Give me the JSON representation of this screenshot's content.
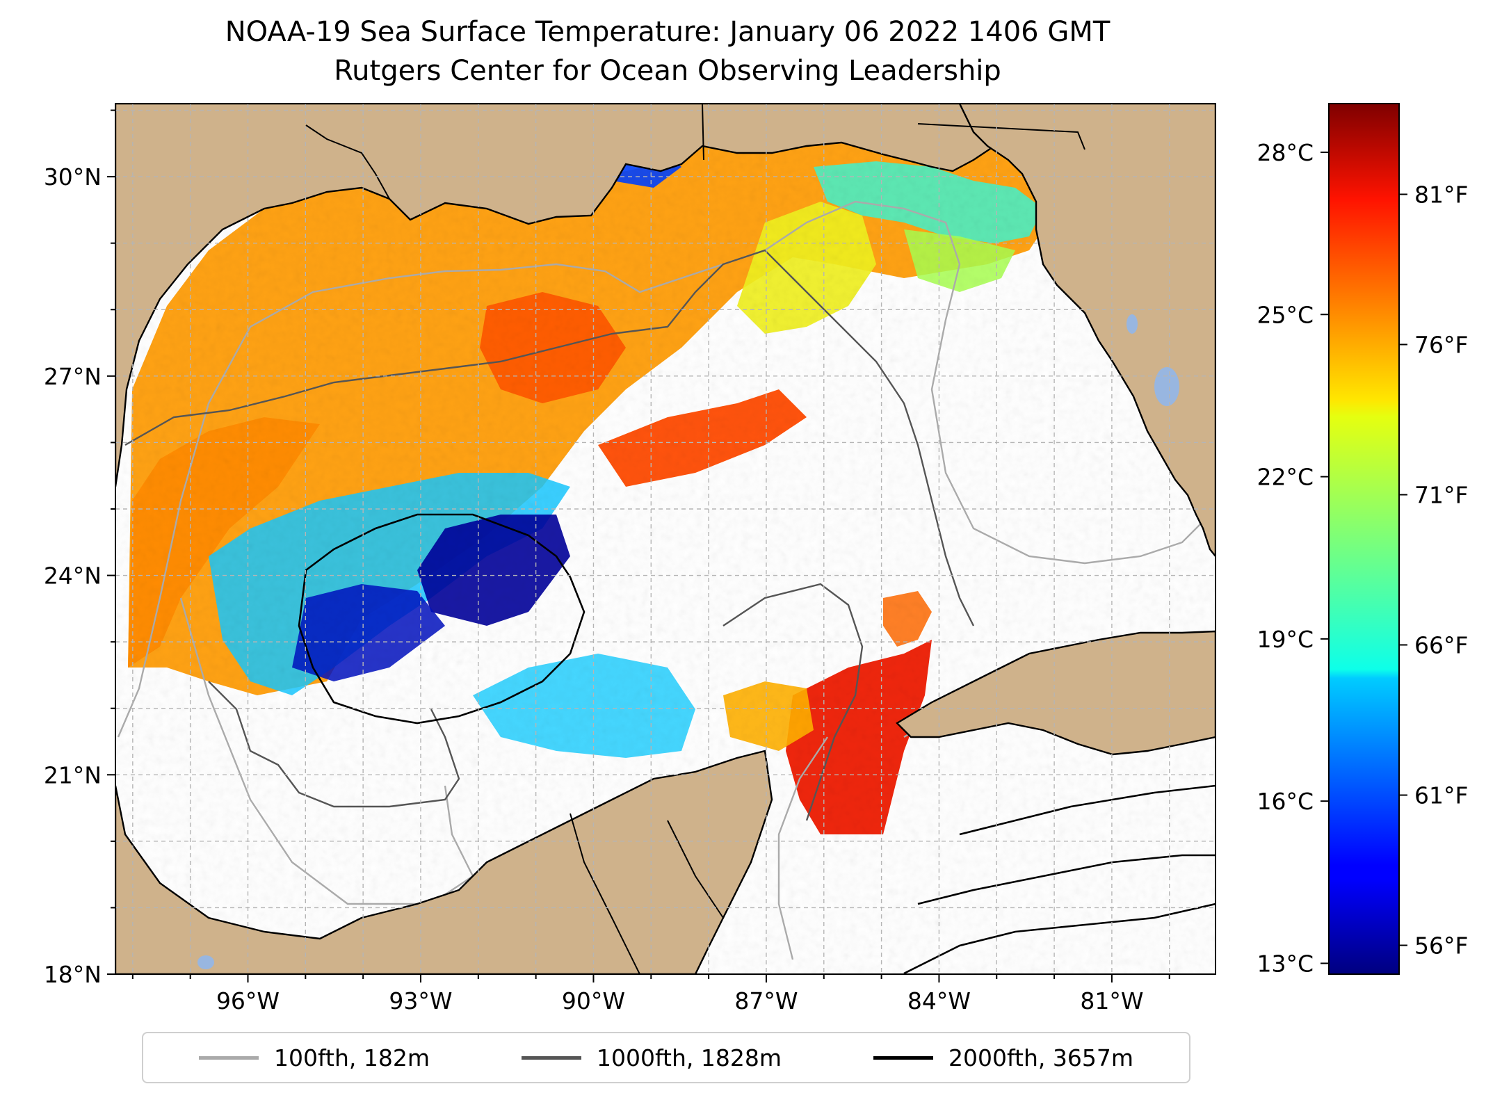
{
  "title": "NOAA-19 Sea Surface Temperature: January 06 2022 1406 GMT",
  "subtitle": "Rutgers Center for Ocean Observing Leadership",
  "map": {
    "lon_range": [
      -98.3,
      -79.2
    ],
    "lat_range": [
      18,
      31.1
    ],
    "lat_ticks": [
      {
        "value": 30,
        "label": "30°N"
      },
      {
        "value": 27,
        "label": "27°N"
      },
      {
        "value": 24,
        "label": "24°N"
      },
      {
        "value": 21,
        "label": "21°N"
      },
      {
        "value": 18,
        "label": "18°N"
      }
    ],
    "lon_ticks": [
      {
        "value": -96,
        "label": "96°W"
      },
      {
        "value": -93,
        "label": "93°W"
      },
      {
        "value": -90,
        "label": "90°W"
      },
      {
        "value": -87,
        "label": "87°W"
      },
      {
        "value": -84,
        "label": "84°W"
      },
      {
        "value": -81,
        "label": "81°W"
      }
    ],
    "land_color": "#cfb28b",
    "water_color": "#ffffff",
    "gridlines": true
  },
  "colorbar": {
    "colormap": "jet",
    "celsius_range": [
      12.8,
      28.9
    ],
    "celsius_ticks": [
      {
        "value": 28,
        "label": "28°C"
      },
      {
        "value": 25,
        "label": "25°C"
      },
      {
        "value": 22,
        "label": "22°C"
      },
      {
        "value": 19,
        "label": "19°C"
      },
      {
        "value": 16,
        "label": "16°C"
      },
      {
        "value": 13,
        "label": "13°C"
      }
    ],
    "fahrenheit_ticks": [
      {
        "value": 81,
        "label": "81°F"
      },
      {
        "value": 76,
        "label": "76°F"
      },
      {
        "value": 71,
        "label": "71°F"
      },
      {
        "value": 66,
        "label": "66°F"
      },
      {
        "value": 61,
        "label": "61°F"
      },
      {
        "value": 56,
        "label": "56°F"
      }
    ]
  },
  "legend": {
    "placement": "bottom-center",
    "items": [
      {
        "label": "100fth, 182m",
        "color": "#aaaaaa"
      },
      {
        "label": "1000fth, 1828m",
        "color": "#555555"
      },
      {
        "label": "2000fth, 3657m",
        "color": "#000000"
      }
    ]
  }
}
